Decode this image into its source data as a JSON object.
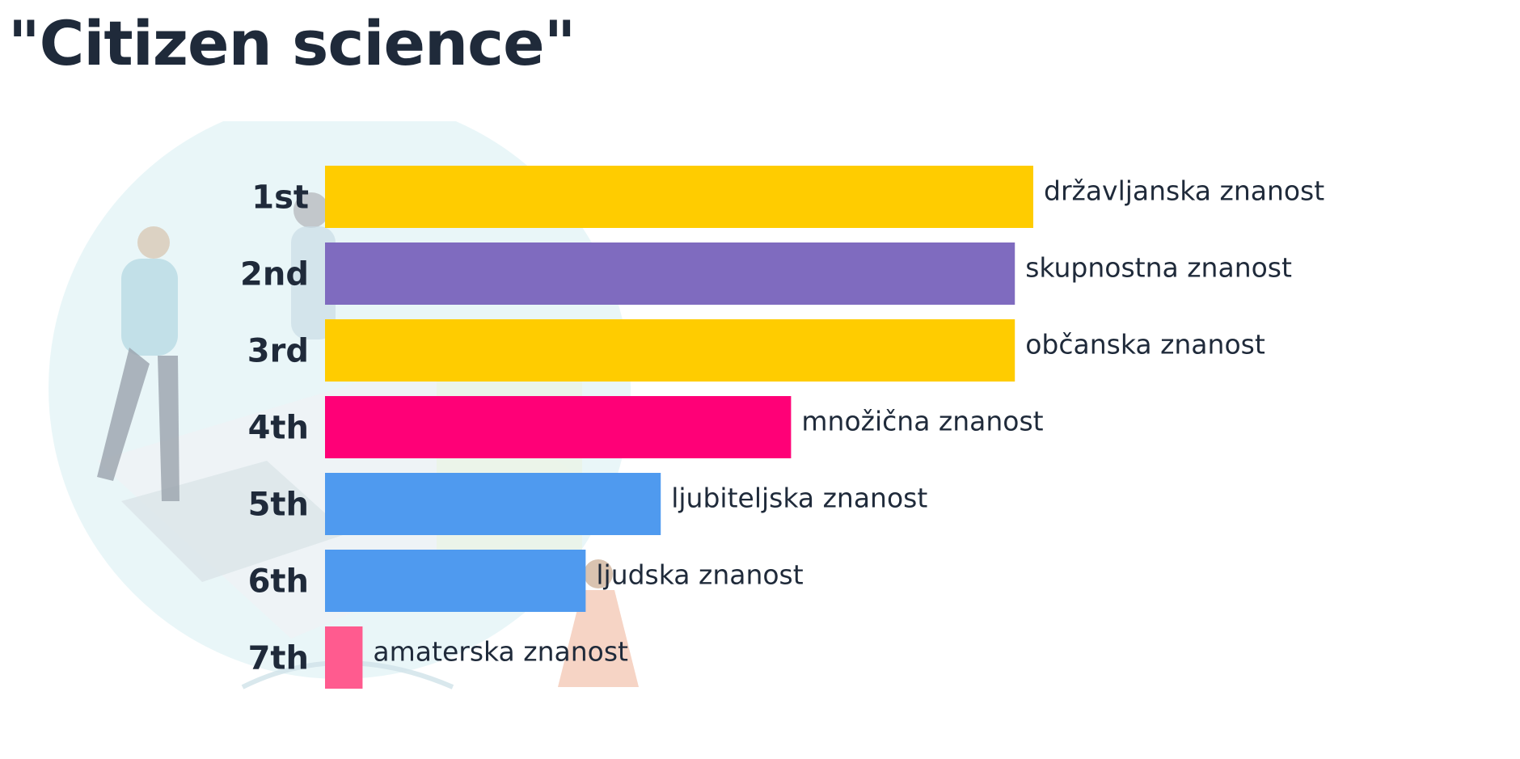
{
  "title": "\"Citizen science\"",
  "colors": {
    "yellow": "#ffcc00",
    "purple": "#7f6bbf",
    "magenta": "#ff0077",
    "blue": "#4f9aef",
    "pink": "#ff5b8f",
    "text": "#1f2a3a"
  },
  "chart_data": {
    "type": "bar",
    "orientation": "horizontal",
    "title": "\"Citizen science\"",
    "categories": [
      "1st",
      "2nd",
      "3rd",
      "4th",
      "5th",
      "6th",
      "7th"
    ],
    "labels": [
      "državljanska znanost",
      "skupnostna znanost",
      "občanska znanost",
      "množična znanost",
      "ljubiteljska znanost",
      "ljudska znanost",
      "amaterska znanost"
    ],
    "values": [
      100,
      97.4,
      97.4,
      65.8,
      47.4,
      36.8,
      5.3
    ],
    "colors": [
      "#ffcc00",
      "#7f6bbf",
      "#ffcc00",
      "#ff0077",
      "#4f9aef",
      "#4f9aef",
      "#ff5b8f"
    ],
    "xlim": [
      0,
      100
    ],
    "grid": false,
    "legend": "none"
  }
}
